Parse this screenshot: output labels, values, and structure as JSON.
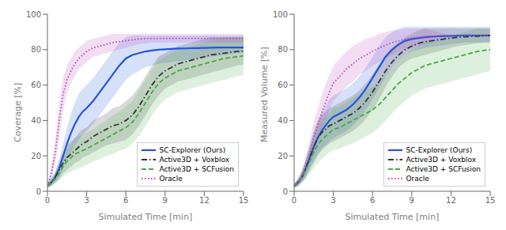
{
  "chart_data": [
    {
      "type": "line",
      "xlabel": "Simulated Time [min]",
      "ylabel": "Coverage [%]",
      "x": [
        0,
        0.3,
        0.6,
        0.9,
        1.2,
        1.5,
        1.8,
        2.1,
        2.4,
        2.7,
        3.0,
        3.5,
        4.0,
        4.5,
        5.0,
        5.5,
        6.0,
        6.5,
        7.0,
        7.5,
        8.0,
        8.5,
        9.0,
        9.5,
        10.0,
        10.5,
        11.0,
        11.5,
        12.0,
        12.5,
        13.0,
        13.5,
        14.0,
        14.5,
        15.0
      ],
      "xlim": [
        0,
        15
      ],
      "xticks": [
        0,
        3,
        6,
        9,
        12,
        15
      ],
      "ylim": [
        0,
        100
      ],
      "yticks": [
        0,
        20,
        40,
        60,
        80,
        100
      ],
      "grid": false,
      "legend": "lower right",
      "series": [
        {
          "name": "SC-Explorer (Ours)",
          "color": "#2255dd",
          "line_style": "solid",
          "values": [
            3,
            5,
            8,
            13,
            20,
            27,
            33,
            38,
            42,
            45,
            47,
            51,
            56,
            61,
            66,
            71,
            75,
            77,
            78,
            79,
            79.5,
            80,
            80.2,
            80.4,
            80.6,
            80.7,
            80.8,
            80.9,
            81.0,
            81.1,
            81.2,
            81.2,
            81.2,
            81.2,
            81.2
          ],
          "lo": [
            2,
            3,
            5,
            8,
            13,
            18,
            22,
            26,
            29,
            32,
            34,
            38,
            43,
            48,
            53,
            58,
            63,
            66,
            68,
            70,
            71,
            72,
            72.5,
            73,
            73.5,
            74,
            74.5,
            75,
            75.5,
            76,
            76.5,
            77,
            77.5,
            78,
            78.5
          ],
          "hi": [
            4,
            7,
            11,
            18,
            27,
            36,
            44,
            50,
            55,
            58,
            60,
            64,
            69,
            74,
            79,
            84,
            87,
            88,
            88,
            88,
            88,
            88,
            88,
            88,
            88,
            88,
            88,
            88,
            88,
            88,
            88,
            88,
            88,
            88,
            88
          ]
        },
        {
          "name": "Active3D + Voxblox",
          "color": "#333333",
          "line_style": "dashdot",
          "values": [
            3,
            5,
            8,
            12,
            16,
            19,
            21,
            23,
            25,
            27,
            28,
            31,
            33,
            35,
            37,
            38,
            40,
            43,
            48,
            54,
            60,
            65,
            68,
            70,
            72,
            73,
            74,
            75,
            76,
            77,
            77.5,
            78,
            78.5,
            79,
            79
          ],
          "lo": [
            2,
            3,
            5,
            7,
            10,
            12,
            14,
            16,
            17,
            19,
            20,
            22,
            24,
            26,
            27,
            28,
            29,
            32,
            37,
            43,
            49,
            54,
            58,
            60,
            62,
            63,
            64,
            65,
            66,
            67,
            68,
            69,
            70,
            71,
            71.5
          ],
          "hi": [
            4,
            7,
            11,
            17,
            22,
            26,
            28,
            30,
            33,
            35,
            36,
            40,
            42,
            44,
            47,
            48,
            51,
            54,
            59,
            65,
            71,
            76,
            78,
            80,
            82,
            83,
            84,
            85,
            86,
            87,
            87,
            87,
            87,
            87,
            87
          ]
        },
        {
          "name": "Active3D + SCFusion",
          "color": "#44aa44",
          "line_style": "dashed",
          "values": [
            3,
            5,
            7,
            10,
            14,
            17,
            19,
            21,
            22,
            23,
            24,
            26,
            28,
            30,
            32,
            34,
            36,
            39,
            44,
            50,
            56,
            61,
            64,
            66,
            68,
            69,
            70,
            71,
            72,
            73,
            74,
            75,
            75.5,
            76,
            76.5
          ],
          "lo": [
            2,
            3,
            4,
            6,
            8,
            10,
            11,
            12,
            13,
            14,
            15,
            17,
            18,
            20,
            21,
            23,
            24,
            27,
            31,
            37,
            43,
            48,
            52,
            54,
            56,
            57,
            58,
            59,
            60,
            61,
            62,
            63,
            64,
            65,
            65.5
          ],
          "hi": [
            4,
            7,
            10,
            14,
            20,
            24,
            27,
            30,
            31,
            32,
            33,
            35,
            38,
            40,
            43,
            45,
            48,
            51,
            57,
            63,
            69,
            74,
            76,
            78,
            80,
            81,
            82,
            83,
            84,
            85,
            86,
            87,
            87,
            87,
            87
          ]
        },
        {
          "name": "Oracle",
          "color": "#bb44bb",
          "line_style": "dotted",
          "values": [
            3,
            10,
            22,
            40,
            55,
            63,
            68,
            72,
            75,
            77,
            79,
            81,
            82,
            83,
            84,
            84.5,
            85,
            85.5,
            86,
            86.2,
            86.3,
            86.3,
            86.3,
            86.3,
            86.3,
            86.3,
            86.3,
            86.3,
            86.3,
            86.3,
            86.3,
            86.3,
            86.3,
            86.3,
            86.3
          ],
          "lo": [
            2,
            6,
            15,
            30,
            46,
            55,
            61,
            65,
            69,
            71,
            73,
            76,
            77,
            78,
            79,
            80,
            81,
            82,
            83,
            83.5,
            84,
            84,
            84,
            84,
            84,
            84,
            84,
            84,
            84,
            84,
            84,
            84,
            84,
            84,
            84
          ],
          "hi": [
            4,
            14,
            29,
            50,
            64,
            71,
            75,
            79,
            81,
            83,
            85,
            86,
            87,
            88,
            89,
            89,
            89,
            89,
            89,
            89,
            89,
            89,
            89,
            89,
            89,
            89,
            89,
            89,
            89,
            89,
            89,
            89,
            89,
            89,
            89
          ]
        }
      ]
    },
    {
      "type": "line",
      "xlabel": "Simulated Time [min]",
      "ylabel": "Measured Volume [%]",
      "x": [
        0,
        0.3,
        0.6,
        0.9,
        1.2,
        1.5,
        1.8,
        2.1,
        2.4,
        2.7,
        3.0,
        3.5,
        4.0,
        4.5,
        5.0,
        5.5,
        6.0,
        6.5,
        7.0,
        7.5,
        8.0,
        8.5,
        9.0,
        9.5,
        10.0,
        10.5,
        11.0,
        11.5,
        12.0,
        12.5,
        13.0,
        13.5,
        14.0,
        14.5,
        15.0
      ],
      "xlim": [
        0,
        15
      ],
      "xticks": [
        0,
        3,
        6,
        9,
        12,
        15
      ],
      "ylim": [
        0,
        100
      ],
      "yticks": [
        0,
        20,
        40,
        60,
        80,
        100
      ],
      "grid": false,
      "legend": "lower right",
      "series": [
        {
          "name": "SC-Explorer (Ours)",
          "color": "#2255dd",
          "line_style": "solid",
          "values": [
            3,
            5,
            8,
            13,
            19,
            25,
            30,
            34,
            37,
            40,
            42,
            44,
            46,
            49,
            53,
            58,
            64,
            70,
            76,
            80,
            83,
            85,
            86,
            86.5,
            87,
            87.3,
            87.5,
            87.7,
            87.8,
            87.9,
            88,
            88,
            88,
            88,
            88
          ],
          "lo": [
            2,
            3,
            5,
            8,
            13,
            17,
            21,
            24,
            26,
            28,
            30,
            32,
            34,
            37,
            41,
            46,
            52,
            58,
            65,
            70,
            74,
            77,
            79,
            80,
            81,
            81.5,
            82,
            82.5,
            83,
            83.5,
            84,
            84,
            84,
            84,
            84
          ],
          "hi": [
            4,
            7,
            11,
            18,
            25,
            33,
            39,
            44,
            48,
            52,
            54,
            56,
            58,
            61,
            65,
            70,
            76,
            82,
            87,
            90,
            92,
            93,
            93,
            93,
            93,
            93,
            93,
            93,
            93,
            93,
            93,
            93,
            93,
            93,
            93
          ]
        },
        {
          "name": "Active3D + Voxblox",
          "color": "#333333",
          "line_style": "dashdot",
          "values": [
            3,
            5,
            8,
            13,
            19,
            25,
            30,
            33,
            35,
            37,
            38,
            40,
            42,
            44,
            47,
            51,
            56,
            62,
            68,
            73,
            77,
            80,
            82,
            83.5,
            84.5,
            85,
            85.5,
            86,
            86.5,
            87,
            87.2,
            87.4,
            87.6,
            87.8,
            88
          ],
          "lo": [
            2,
            3,
            5,
            8,
            12,
            16,
            20,
            23,
            25,
            27,
            28,
            30,
            32,
            34,
            37,
            41,
            46,
            52,
            59,
            65,
            70,
            73,
            75,
            76,
            77,
            78,
            79,
            80,
            81,
            82,
            82.5,
            83,
            83.5,
            84,
            84
          ],
          "hi": [
            4,
            7,
            11,
            18,
            26,
            34,
            40,
            43,
            45,
            47,
            48,
            50,
            52,
            54,
            57,
            61,
            66,
            72,
            77,
            81,
            84,
            87,
            89,
            91,
            92,
            92,
            92,
            92,
            92,
            92,
            92,
            92,
            92,
            92,
            92
          ]
        },
        {
          "name": "Active3D + SCFusion",
          "color": "#44aa44",
          "line_style": "dashed",
          "values": [
            3,
            5,
            8,
            12,
            17,
            22,
            26,
            29,
            31,
            33,
            35,
            36,
            38,
            40,
            42,
            44,
            46,
            49,
            53,
            57,
            61,
            64,
            67,
            69,
            71,
            72,
            73,
            74,
            75,
            76,
            77,
            78,
            79,
            79.5,
            80
          ],
          "lo": [
            2,
            3,
            5,
            7,
            10,
            13,
            16,
            18,
            20,
            22,
            23,
            24,
            26,
            27,
            29,
            31,
            33,
            36,
            40,
            44,
            48,
            51,
            54,
            56,
            58,
            59,
            60,
            61,
            62,
            63,
            64,
            65,
            66,
            67,
            68
          ],
          "hi": [
            4,
            7,
            11,
            17,
            24,
            31,
            36,
            40,
            42,
            44,
            47,
            48,
            50,
            53,
            55,
            57,
            59,
            62,
            66,
            70,
            74,
            77,
            80,
            82,
            84,
            85,
            86,
            87,
            88,
            89,
            90,
            91,
            92,
            92,
            92
          ]
        },
        {
          "name": "Oracle",
          "color": "#bb44bb",
          "line_style": "dotted",
          "values": [
            3,
            5,
            9,
            15,
            22,
            30,
            37,
            44,
            50,
            56,
            61,
            65,
            69,
            72,
            75,
            77,
            79,
            81,
            82.5,
            84,
            85,
            86,
            86.5,
            87,
            87.3,
            87.5,
            87.7,
            87.8,
            87.9,
            88,
            88,
            88,
            88,
            88,
            88
          ],
          "lo": [
            2,
            3,
            6,
            10,
            15,
            21,
            28,
            34,
            40,
            46,
            51,
            55,
            59,
            62,
            66,
            68,
            71,
            73,
            75,
            77,
            79,
            80,
            81,
            82,
            83,
            84,
            85,
            86,
            87,
            87.5,
            88,
            88,
            88,
            88,
            88
          ],
          "hi": [
            4,
            7,
            12,
            20,
            29,
            39,
            46,
            54,
            60,
            66,
            71,
            75,
            79,
            82,
            84,
            86,
            87,
            89,
            90,
            91,
            91,
            92,
            92,
            92,
            92,
            91,
            90,
            89,
            88,
            88,
            88,
            88,
            88,
            88,
            88
          ]
        }
      ]
    }
  ]
}
